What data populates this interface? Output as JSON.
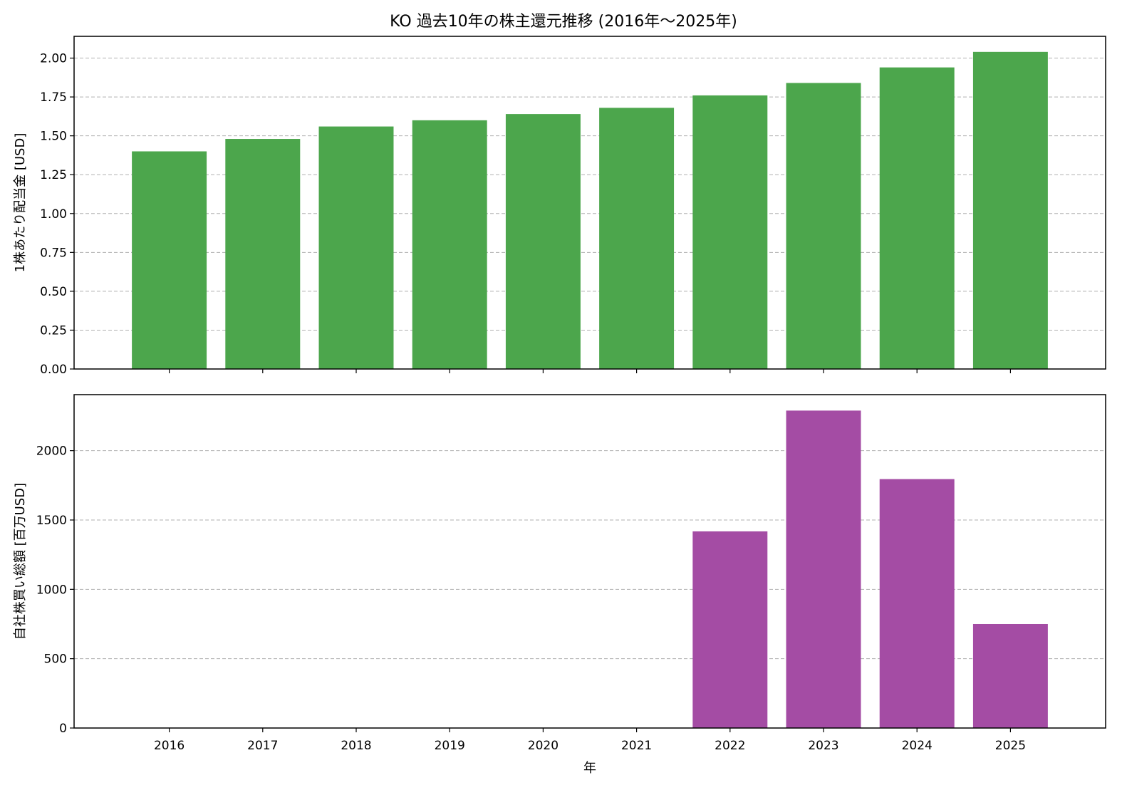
{
  "title": "KO 過去10年の株主還元推移 (2016年〜2025年)",
  "chart_data": [
    {
      "type": "bar",
      "categories": [
        "2016",
        "2017",
        "2018",
        "2019",
        "2020",
        "2021",
        "2022",
        "2023",
        "2024",
        "2025"
      ],
      "values": [
        1.4,
        1.48,
        1.56,
        1.6,
        1.64,
        1.68,
        1.76,
        1.84,
        1.94,
        2.04
      ],
      "ylabel": "1株あたり配当金 [USD]",
      "ylim": [
        0,
        2.14
      ],
      "yticks": [
        0.0,
        0.25,
        0.5,
        0.75,
        1.0,
        1.25,
        1.5,
        1.75,
        2.0
      ],
      "ytick_labels": [
        "0.00",
        "0.25",
        "0.50",
        "0.75",
        "1.00",
        "1.25",
        "1.50",
        "1.75",
        "2.00"
      ],
      "color": "#4ca64c",
      "grid": "y-dashed"
    },
    {
      "type": "bar",
      "categories": [
        "2016",
        "2017",
        "2018",
        "2019",
        "2020",
        "2021",
        "2022",
        "2023",
        "2024",
        "2025"
      ],
      "values": [
        0,
        0,
        0,
        0,
        0,
        0,
        1418,
        2289,
        1795,
        750
      ],
      "xlabel": "年",
      "ylabel": "自社株買い総額 [百万USD]",
      "ylim": [
        0,
        2404
      ],
      "yticks": [
        0,
        500,
        1000,
        1500,
        2000
      ],
      "ytick_labels": [
        "0",
        "500",
        "1000",
        "1500",
        "2000"
      ],
      "color": "#a44ca4",
      "grid": "y-dashed"
    }
  ]
}
